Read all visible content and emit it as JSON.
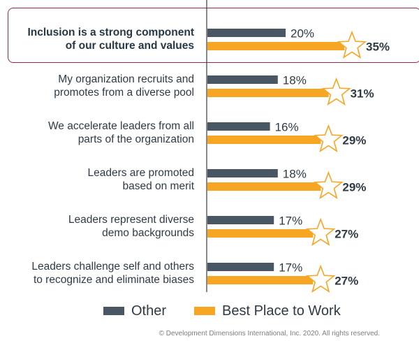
{
  "chart_data": {
    "type": "bar",
    "orientation": "horizontal",
    "categories": [
      "Inclusion is a strong component of our culture and values",
      "My organization recruits and promotes from a diverse pool",
      "We accelerate leaders from all parts of the organization",
      "Leaders are promoted based on merit",
      "Leaders represent diverse demo backgrounds",
      "Leaders challenge self and others to recognize and eliminate biases"
    ],
    "category_lines": [
      [
        "Inclusion is a strong component",
        "of our culture and values"
      ],
      [
        "My organization recruits and",
        "promotes from a diverse pool"
      ],
      [
        "We accelerate leaders from all",
        "parts of the organization"
      ],
      [
        "Leaders are promoted",
        "based on merit"
      ],
      [
        "Leaders represent diverse",
        "demo backgrounds"
      ],
      [
        "Leaders challenge self and others",
        "to recognize and eliminate biases"
      ]
    ],
    "series": [
      {
        "name": "Other",
        "values": [
          20,
          18,
          16,
          18,
          17,
          17
        ],
        "labels": [
          "20%",
          "18%",
          "16%",
          "18%",
          "17%",
          "17%"
        ],
        "color": "#495663"
      },
      {
        "name": "Best Place to Work",
        "values": [
          35,
          31,
          29,
          29,
          27,
          27
        ],
        "labels": [
          "35%",
          "31%",
          "29%",
          "29%",
          "27%",
          "27%"
        ],
        "color": "#f6a623"
      }
    ],
    "xlim": [
      0,
      35
    ],
    "highlighted_category": "Inclusion is a strong component of our culture and values",
    "highlight_color": "#8d2d4a",
    "marker_icon": "star-icon",
    "grid": false,
    "legend_position": "bottom"
  },
  "legend": {
    "other": "Other",
    "best": "Best Place to Work"
  },
  "footer": "© Development Dimensions International, Inc. 2020. All rights reserved."
}
